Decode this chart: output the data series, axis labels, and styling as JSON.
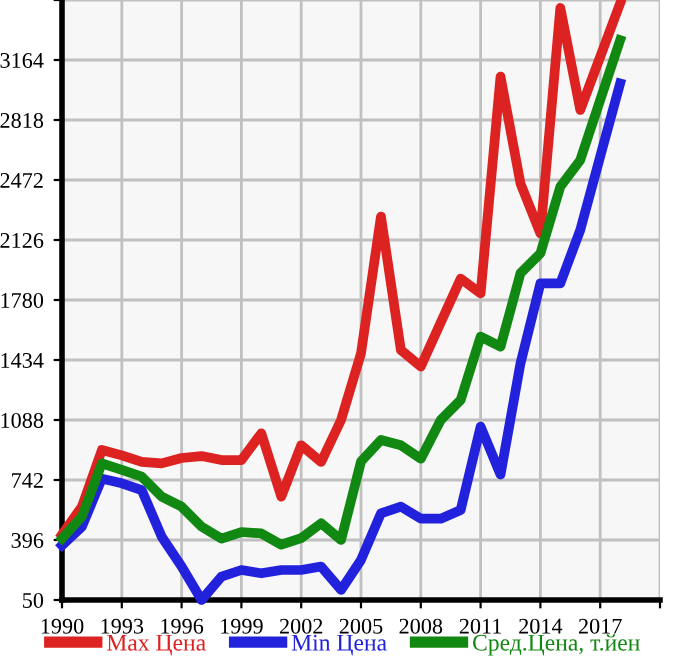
{
  "chart_data": {
    "type": "line",
    "x": [
      1990,
      1991,
      1992,
      1993,
      1994,
      1995,
      1996,
      1997,
      1998,
      1999,
      2000,
      2001,
      2002,
      2003,
      2004,
      2005,
      2006,
      2007,
      2008,
      2009,
      2010,
      2011,
      2012,
      2013,
      2014,
      2015,
      2016,
      2017,
      2018
    ],
    "series": [
      {
        "name": "Max Цена",
        "color": "#dd2222",
        "values": [
          427,
          589,
          915,
          884,
          846,
          838,
          869,
          880,
          857,
          857,
          1011,
          646,
          942,
          846,
          1088,
          1472,
          2261,
          1492,
          1396,
          1650,
          1903,
          1818,
          3068,
          2452,
          2164,
          3464,
          2876,
          3183,
          3490
        ]
      },
      {
        "name": "Min Цена",
        "color": "#2222dd",
        "values": [
          365,
          473,
          750,
          723,
          684,
          415,
          243,
          50,
          185,
          223,
          204,
          223,
          223,
          243,
          108,
          281,
          550,
          588,
          519,
          519,
          569,
          1050,
          773,
          1414,
          1876,
          1876,
          2184,
          2607,
          3029
        ]
      },
      {
        "name": "Сред.Цена, т.йен",
        "color": "#118811",
        "values": [
          404,
          531,
          838,
          800,
          761,
          646,
          588,
          473,
          404,
          442,
          434,
          369,
          407,
          492,
          396,
          849,
          973,
          942,
          865,
          1088,
          1203,
          1569,
          1511,
          1934,
          2049,
          2434,
          2587,
          2933,
          3279
        ]
      }
    ],
    "xlim": [
      1990,
      2020
    ],
    "xticks": [
      1990,
      1993,
      1996,
      1999,
      2002,
      2005,
      2008,
      2011,
      2014,
      2017,
      {
        "value": 2020,
        "label": null
      }
    ],
    "ylim": [
      50,
      3510
    ],
    "yticks": [
      50,
      396,
      742,
      1088,
      1434,
      1780,
      2126,
      2472,
      2818,
      3164,
      {
        "value": 3510,
        "label": null
      }
    ],
    "grid": true,
    "legend": "bottom",
    "marker": "none",
    "line_style": "solid"
  }
}
